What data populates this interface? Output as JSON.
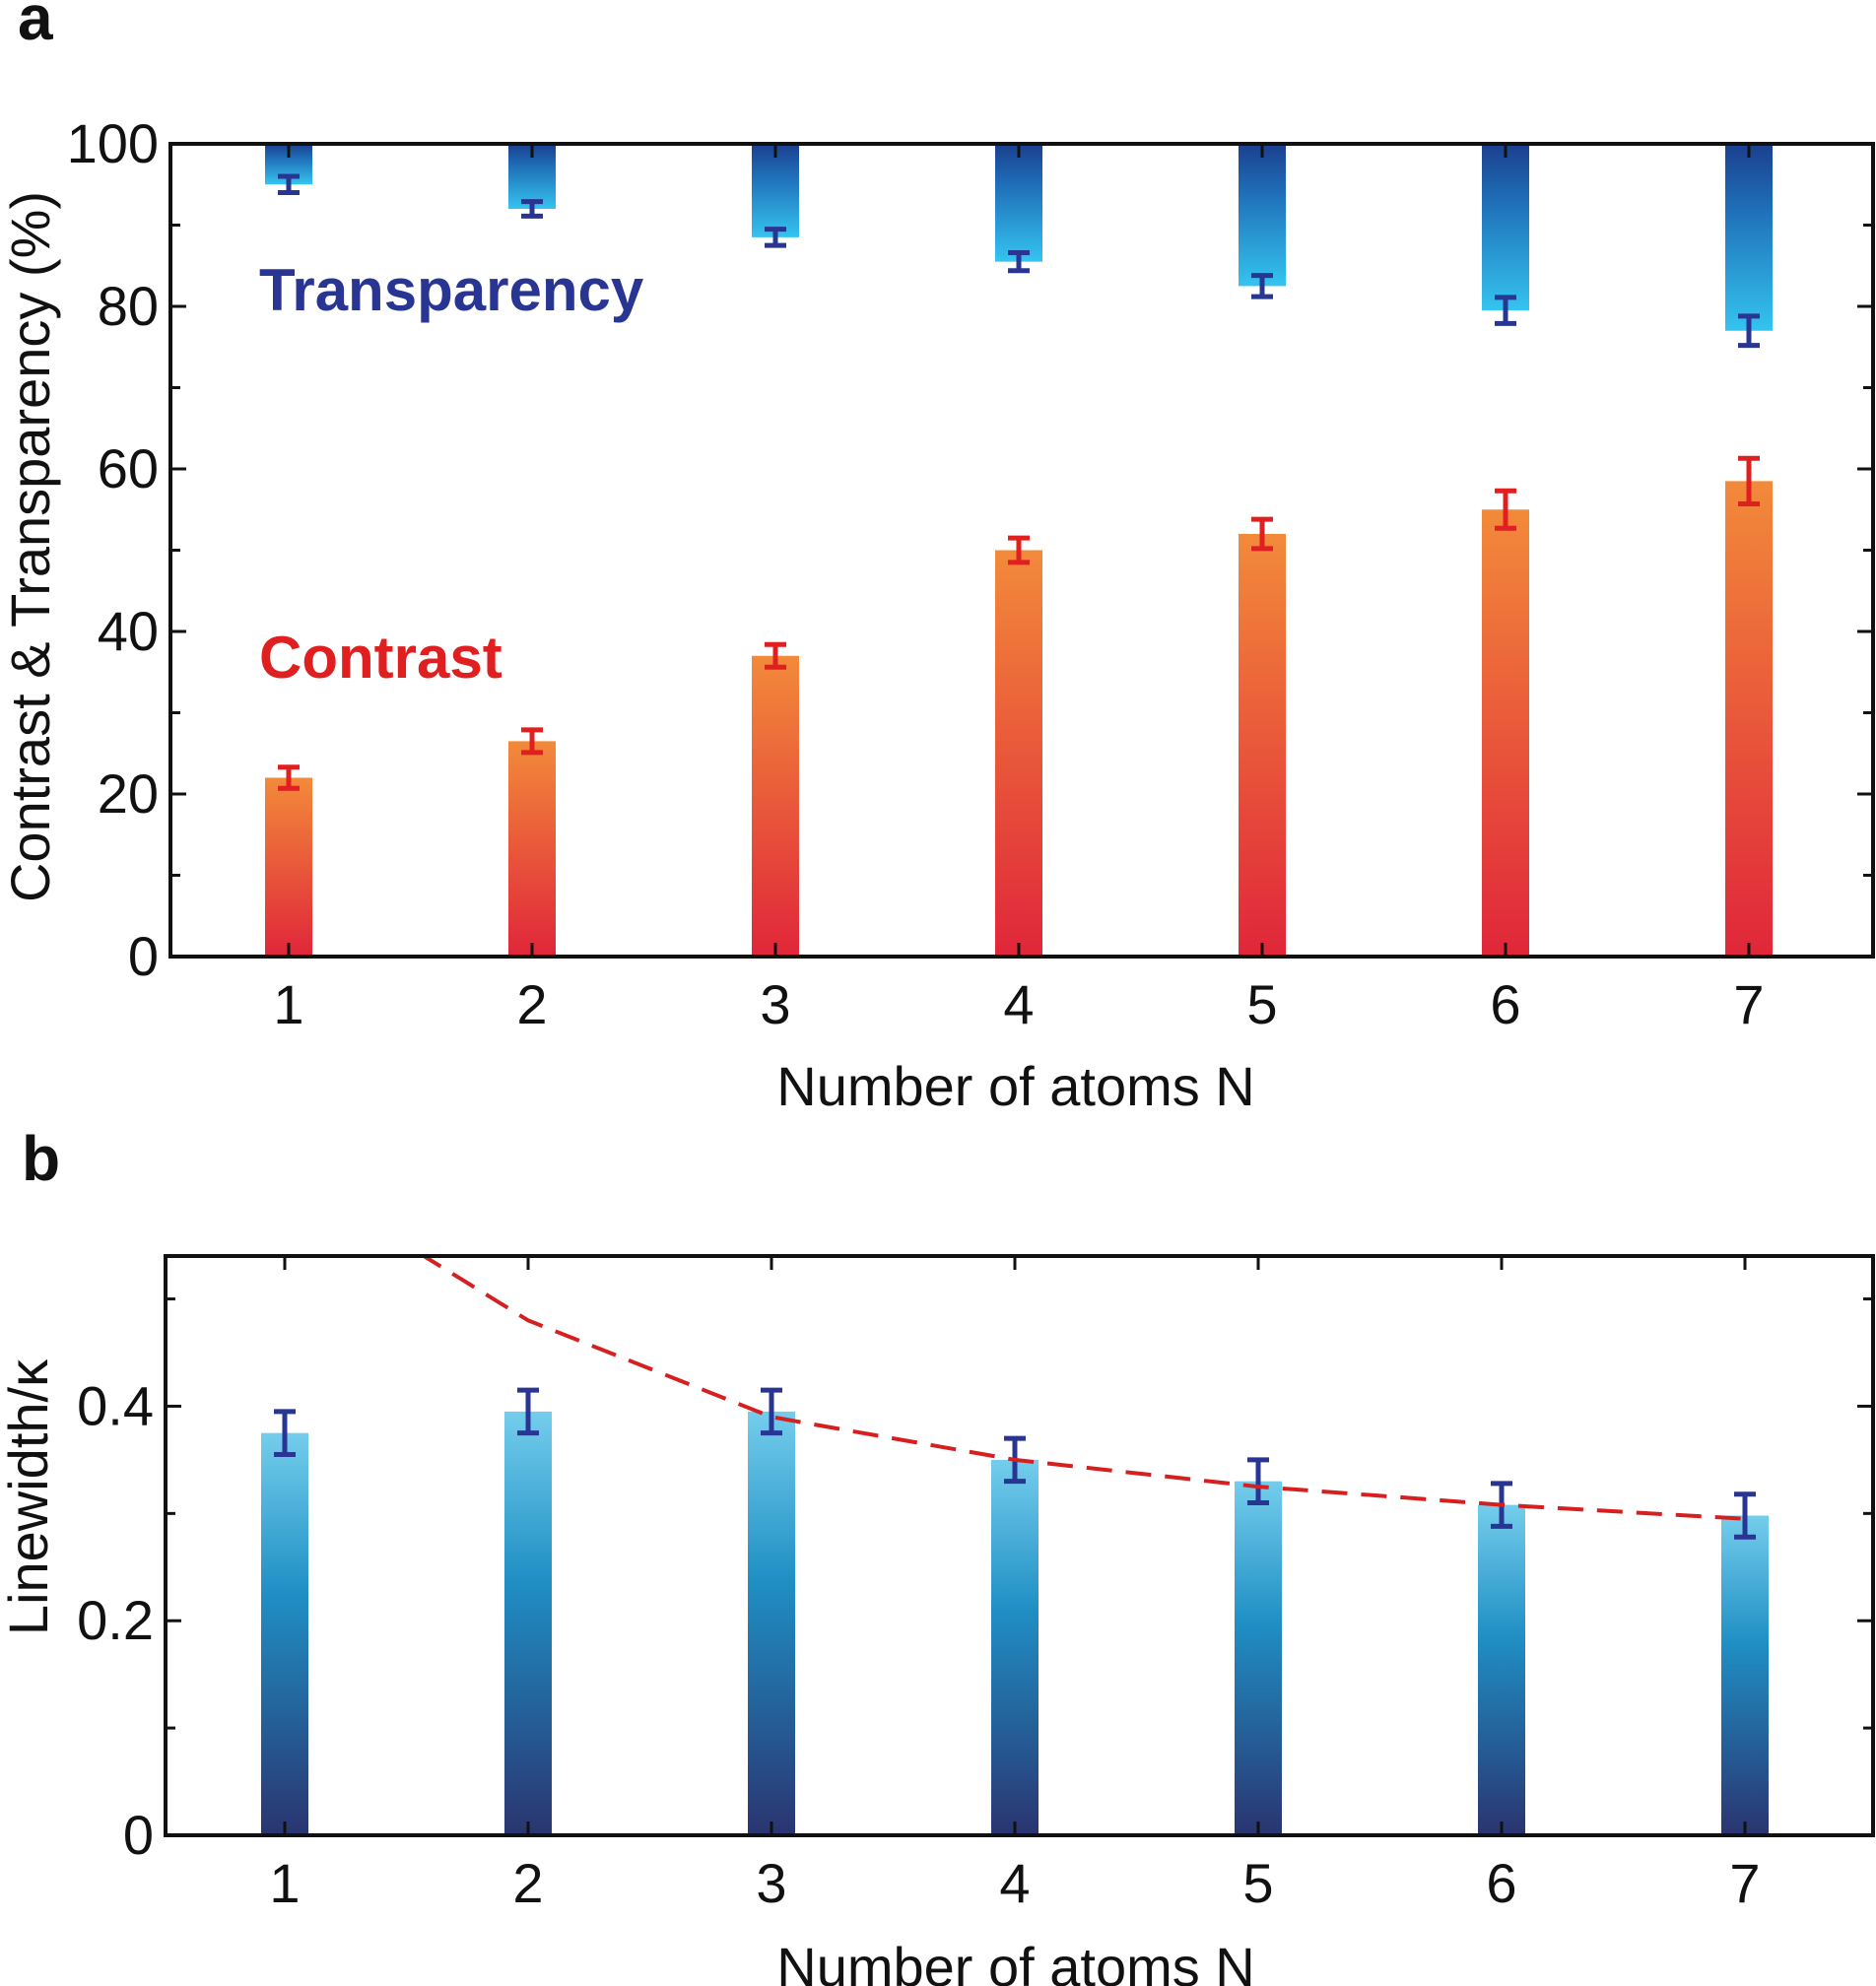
{
  "chart_data": [
    {
      "panel_label": "a",
      "type": "bar",
      "categories": [
        "1",
        "2",
        "3",
        "4",
        "5",
        "6",
        "7"
      ],
      "series": [
        {
          "name": "Transparency",
          "bar_top": 100,
          "values": [
            95,
            92,
            88.5,
            85.5,
            82.5,
            79.5,
            77
          ],
          "errors": [
            1.0,
            0.9,
            1.0,
            1.1,
            1.3,
            1.6,
            1.8
          ],
          "color": "#283593"
        },
        {
          "name": "Contrast",
          "values": [
            22,
            26.5,
            37,
            50,
            52,
            55,
            58.5
          ],
          "errors": [
            1.3,
            1.4,
            1.4,
            1.5,
            1.8,
            2.3,
            2.8
          ],
          "color": "#e02020"
        }
      ],
      "xlabel": "Number of atoms N",
      "ylabel": "Contrast & Transparency (%)",
      "xticks": [
        "1",
        "2",
        "3",
        "4",
        "5",
        "6",
        "7"
      ],
      "yticks": [
        "0",
        "20",
        "40",
        "60",
        "80",
        "100"
      ],
      "ylim": [
        0,
        100
      ],
      "grid": false
    },
    {
      "panel_label": "b",
      "type": "bar",
      "categories": [
        "1",
        "2",
        "3",
        "4",
        "5",
        "6",
        "7"
      ],
      "series": [
        {
          "values": [
            0.375,
            0.395,
            0.395,
            0.35,
            0.33,
            0.308,
            0.298
          ],
          "errors": [
            0.02,
            0.02,
            0.02,
            0.02,
            0.02,
            0.02,
            0.02
          ],
          "color": "#283593"
        },
        {
          "line_style": "dashed",
          "x": [
            1,
            2,
            3,
            4,
            5,
            6,
            7
          ],
          "values": [
            0.62,
            0.48,
            0.39,
            0.35,
            0.325,
            0.308,
            0.295
          ],
          "color": "#d62020"
        }
      ],
      "xlabel": "Number of atoms N",
      "ylabel": "Linewidth/κ",
      "xticks": [
        "1",
        "2",
        "3",
        "4",
        "5",
        "6",
        "7"
      ],
      "yticks": [
        "0",
        "0.2",
        "0.4"
      ],
      "ylim": [
        0,
        0.54
      ],
      "grid": false
    }
  ]
}
